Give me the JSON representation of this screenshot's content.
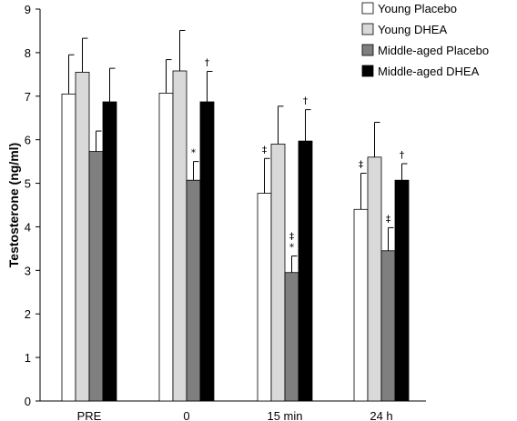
{
  "chart_data": {
    "type": "bar",
    "title": "",
    "xlabel": "",
    "ylabel": "Testosterone (ng/ml)",
    "ylim": [
      0,
      9
    ],
    "yticks": [
      0,
      1,
      2,
      3,
      4,
      5,
      6,
      7,
      8,
      9
    ],
    "grid": false,
    "legend_position": "top-right",
    "categories": [
      "PRE",
      "0",
      "15 min",
      "24 h"
    ],
    "series": [
      {
        "name": "Young Placebo",
        "color": "#ffffff",
        "values": [
          7.05,
          7.07,
          4.77,
          4.4
        ],
        "errors": [
          0.9,
          0.77,
          0.8,
          0.83
        ],
        "annotations": [
          "",
          "",
          "‡",
          "‡"
        ]
      },
      {
        "name": "Young DHEA",
        "color": "#d9d9d9",
        "values": [
          7.55,
          7.58,
          5.9,
          5.6
        ],
        "errors": [
          0.78,
          0.93,
          0.87,
          0.8
        ],
        "annotations": [
          "",
          "",
          "",
          ""
        ]
      },
      {
        "name": "Middle-aged Placebo",
        "color": "#7f7f7f",
        "values": [
          5.73,
          5.07,
          2.95,
          3.45
        ],
        "errors": [
          0.47,
          0.43,
          0.38,
          0.53
        ],
        "annotations": [
          "",
          "*",
          "‡\n*",
          "‡"
        ]
      },
      {
        "name": "Middle-aged DHEA",
        "color": "#000000",
        "values": [
          6.87,
          6.87,
          5.97,
          5.07
        ],
        "errors": [
          0.77,
          0.7,
          0.72,
          0.38
        ],
        "annotations": [
          "",
          "†",
          "†",
          "†"
        ]
      }
    ]
  }
}
